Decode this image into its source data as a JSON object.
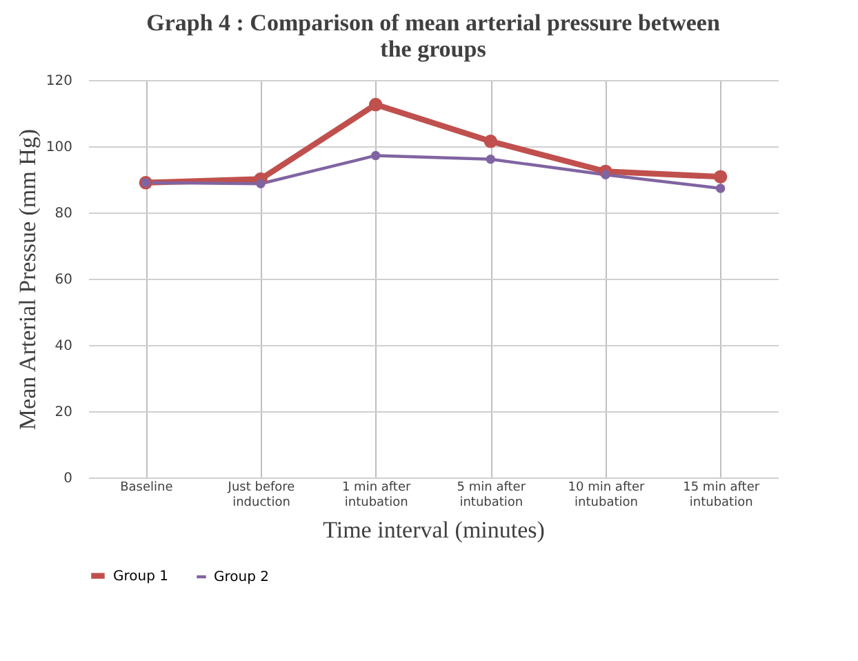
{
  "chart_data": {
    "type": "line",
    "title": "Graph 4 : Comparison of mean arterial pressure between the groups",
    "xlabel": "Time interval (minutes)",
    "ylabel": "Mean Arterial Pressue (mm Hg)",
    "categories": [
      "Baseline",
      "Just before induction",
      "1 min after intubation",
      "5 min after intubation",
      "10 min after intubation",
      "15 min after intubation"
    ],
    "series": [
      {
        "name": "Group 1",
        "color": "#c0504d",
        "values": [
          89.0,
          90.1,
          112.6,
          101.5,
          92.4,
          90.8
        ]
      },
      {
        "name": "Group 2",
        "color": "#8064a2",
        "values": [
          89.0,
          88.7,
          97.2,
          96.1,
          91.4,
          87.3
        ]
      }
    ],
    "ylim": [
      0,
      120
    ],
    "yticks": [
      0,
      20,
      40,
      60,
      80,
      100,
      120
    ],
    "grid": true,
    "legend": "bottom",
    "marker": "circle",
    "line_style": "solid"
  }
}
